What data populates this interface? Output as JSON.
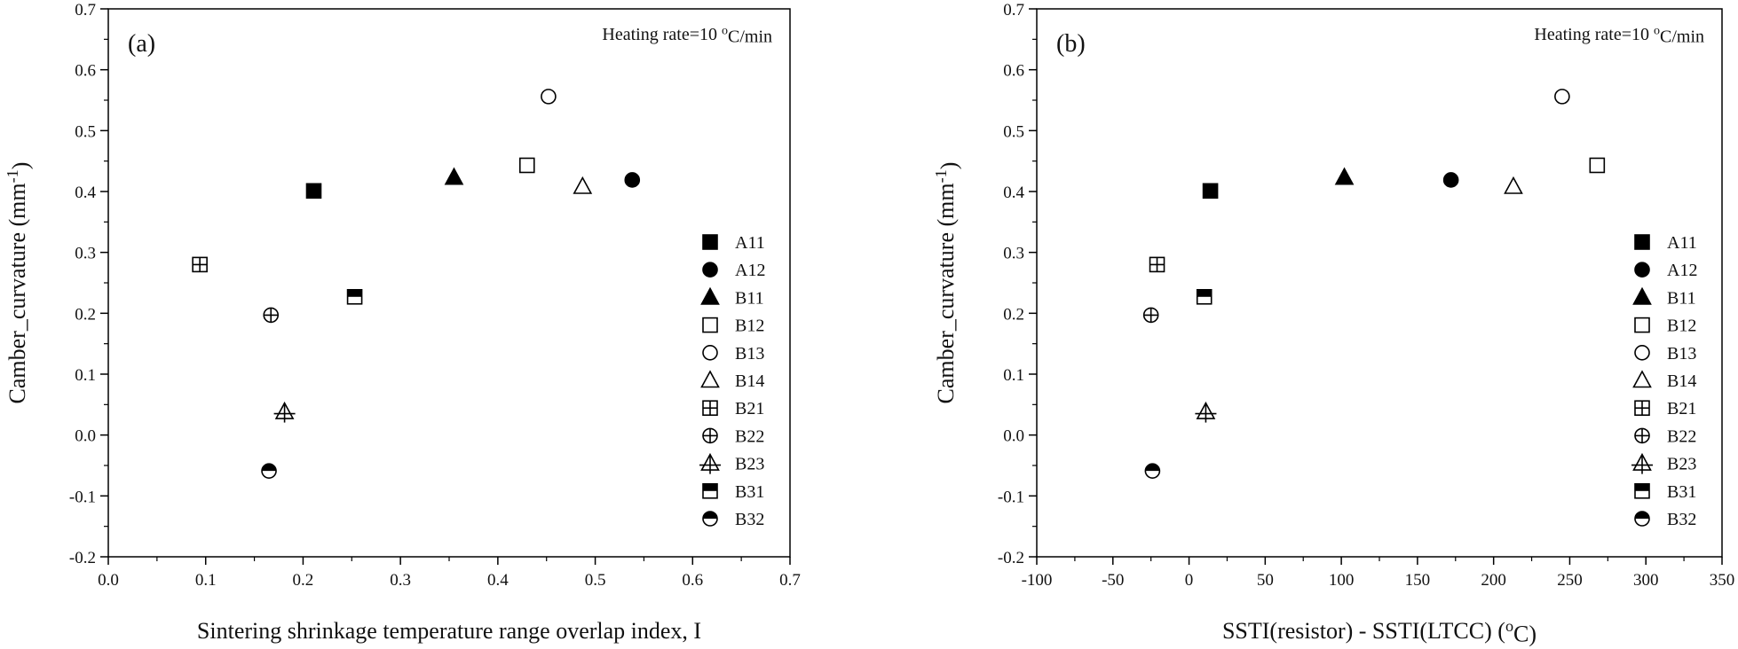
{
  "chart_data": [
    {
      "panel": "a",
      "type": "scatter",
      "panel_label": "(a)",
      "annotation": {
        "prefix": "Heating rate=10 ",
        "sup": "o",
        "suffix": "C/min"
      },
      "xlabel": "Sintering shrinkage temperature range overlap index, I",
      "ylabel": {
        "prefix": "Camber_curvature (mm",
        "sup": "-1",
        "suffix": ")"
      },
      "xlim": [
        0.0,
        0.7
      ],
      "ylim": [
        -0.2,
        0.7
      ],
      "xticks": [
        0.0,
        0.1,
        0.2,
        0.3,
        0.4,
        0.5,
        0.6,
        0.7
      ],
      "yticks": [
        -0.2,
        -0.1,
        0.0,
        0.1,
        0.2,
        0.3,
        0.4,
        0.5,
        0.6,
        0.7
      ],
      "xtick_labels": [
        "0.0",
        "0.1",
        "0.2",
        "0.3",
        "0.4",
        "0.5",
        "0.6",
        "0.7"
      ],
      "ytick_labels": [
        "-0.2",
        "-0.1",
        "0.0",
        "0.1",
        "0.2",
        "0.3",
        "0.4",
        "0.5",
        "0.6",
        "0.7"
      ],
      "legend_position": "right",
      "series": [
        {
          "name": "A11",
          "marker": "square-filled",
          "x": 0.211,
          "y": 0.401
        },
        {
          "name": "A12",
          "marker": "circle-filled",
          "x": 0.538,
          "y": 0.419
        },
        {
          "name": "B11",
          "marker": "triangle-filled",
          "x": 0.355,
          "y": 0.423
        },
        {
          "name": "B12",
          "marker": "square-open",
          "x": 0.43,
          "y": 0.443
        },
        {
          "name": "B13",
          "marker": "circle-open",
          "x": 0.452,
          "y": 0.556
        },
        {
          "name": "B14",
          "marker": "triangle-open",
          "x": 0.487,
          "y": 0.408
        },
        {
          "name": "B21",
          "marker": "square-plus",
          "x": 0.094,
          "y": 0.28
        },
        {
          "name": "B22",
          "marker": "circle-plus",
          "x": 0.167,
          "y": 0.197
        },
        {
          "name": "B23",
          "marker": "triangle-plus",
          "x": 0.181,
          "y": 0.038
        },
        {
          "name": "B31",
          "marker": "square-half",
          "x": 0.253,
          "y": 0.227
        },
        {
          "name": "B32",
          "marker": "circle-half",
          "x": 0.165,
          "y": -0.059
        }
      ]
    },
    {
      "panel": "b",
      "type": "scatter",
      "panel_label": "(b)",
      "annotation": {
        "prefix": "Heating rate=10 ",
        "sup": "o",
        "suffix": "C/min"
      },
      "xlabel": {
        "prefix": "SSTI(resistor) - SSTI(LTCC) (",
        "sup": "o",
        "suffix": "C)"
      },
      "ylabel": {
        "prefix": "Camber_curvature (mm",
        "sup": "-1",
        "suffix": ")"
      },
      "xlim": [
        -100,
        350
      ],
      "ylim": [
        -0.2,
        0.7
      ],
      "xticks": [
        -100,
        -50,
        0,
        50,
        100,
        150,
        200,
        250,
        300,
        350
      ],
      "yticks": [
        -0.2,
        -0.1,
        0.0,
        0.1,
        0.2,
        0.3,
        0.4,
        0.5,
        0.6,
        0.7
      ],
      "xtick_labels": [
        "-100",
        "-50",
        "0",
        "50",
        "100",
        "150",
        "200",
        "250",
        "300",
        "350"
      ],
      "ytick_labels": [
        "-0.2",
        "-0.1",
        "0.0",
        "0.1",
        "0.2",
        "0.3",
        "0.4",
        "0.5",
        "0.6",
        "0.7"
      ],
      "legend_position": "right",
      "series": [
        {
          "name": "A11",
          "marker": "square-filled",
          "x": 14,
          "y": 0.401
        },
        {
          "name": "A12",
          "marker": "circle-filled",
          "x": 172,
          "y": 0.419
        },
        {
          "name": "B11",
          "marker": "triangle-filled",
          "x": 102,
          "y": 0.423
        },
        {
          "name": "B12",
          "marker": "square-open",
          "x": 268,
          "y": 0.443
        },
        {
          "name": "B13",
          "marker": "circle-open",
          "x": 245,
          "y": 0.556
        },
        {
          "name": "B14",
          "marker": "triangle-open",
          "x": 213,
          "y": 0.408
        },
        {
          "name": "B21",
          "marker": "square-plus",
          "x": -21,
          "y": 0.28
        },
        {
          "name": "B22",
          "marker": "circle-plus",
          "x": -25,
          "y": 0.197
        },
        {
          "name": "B23",
          "marker": "triangle-plus",
          "x": 11,
          "y": 0.038
        },
        {
          "name": "B31",
          "marker": "square-half",
          "x": 10,
          "y": 0.227
        },
        {
          "name": "B32",
          "marker": "circle-half",
          "x": -24,
          "y": -0.059
        }
      ]
    }
  ]
}
